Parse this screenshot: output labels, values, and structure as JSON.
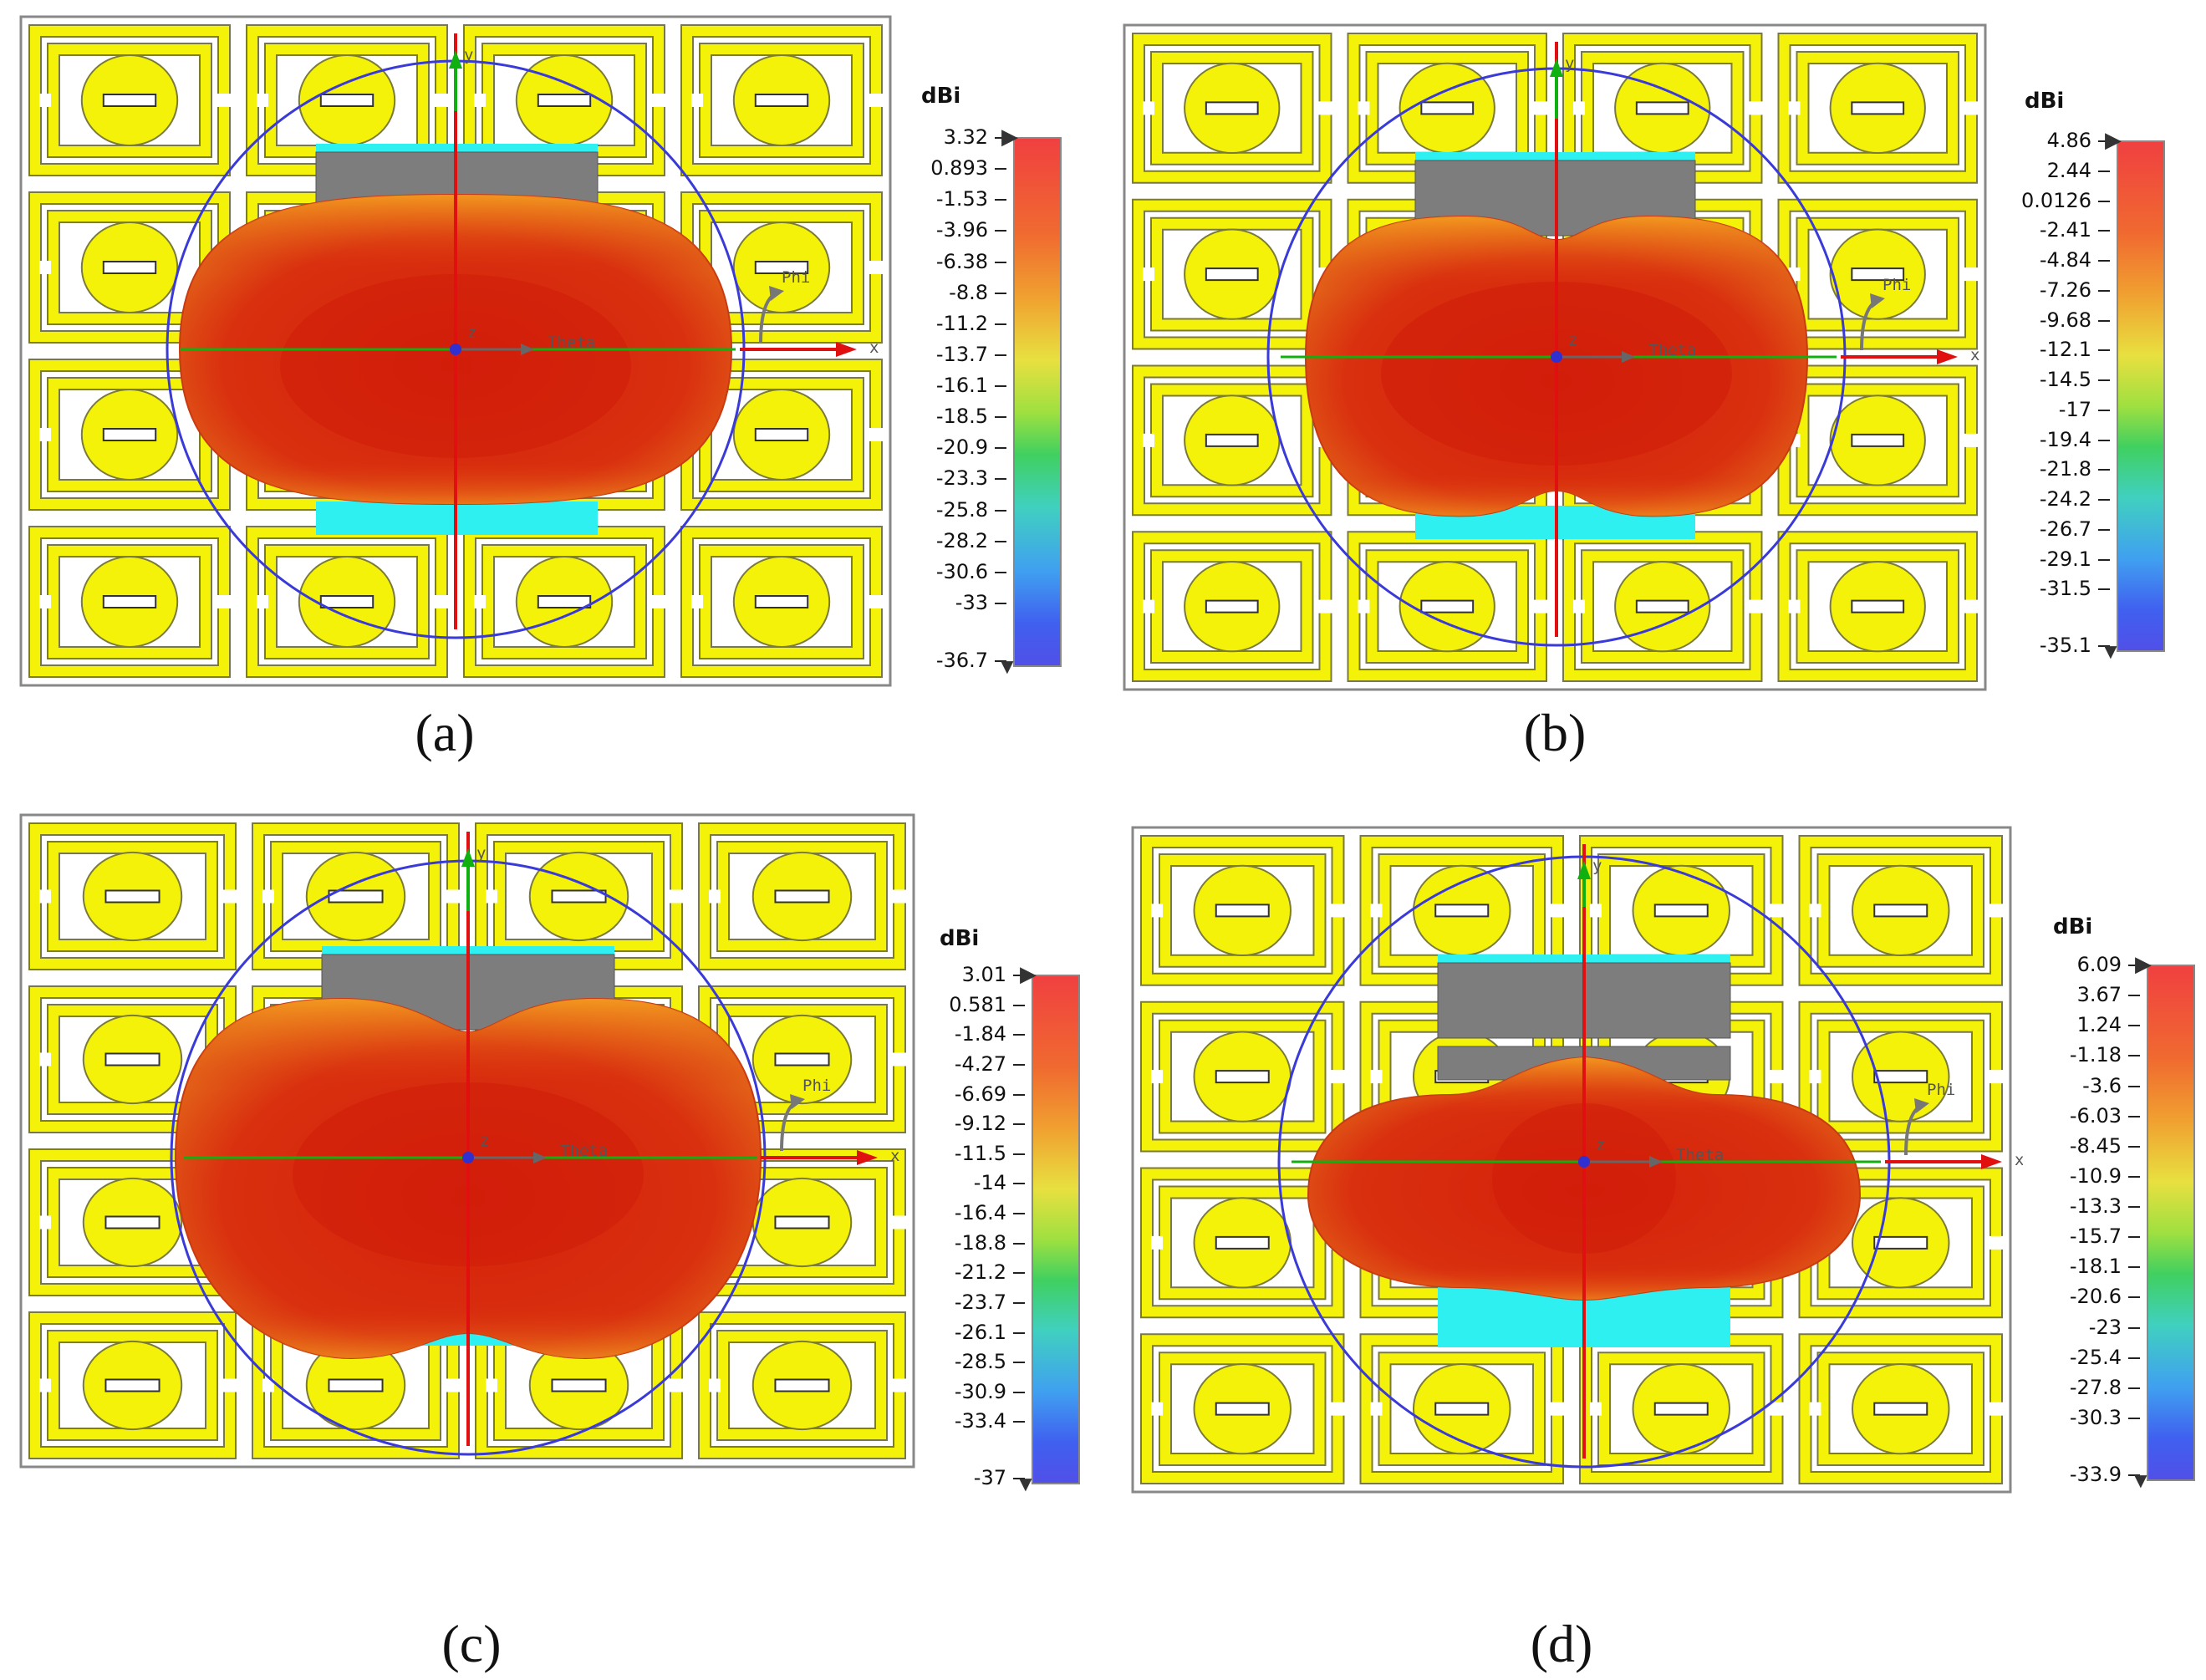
{
  "panels": [
    {
      "id": "a",
      "caption": "(a)",
      "unit": "dBi",
      "colorbar": [
        "3.32",
        "0.893",
        "-1.53",
        "-3.96",
        "-6.38",
        "-8.8",
        "-11.2",
        "-13.7",
        "-16.1",
        "-18.5",
        "-20.9",
        "-23.3",
        "-25.8",
        "-28.2",
        "-30.6",
        "-33",
        "-36.7"
      ],
      "axes": {
        "x": "x",
        "y": "y",
        "z": "z",
        "theta": "Theta",
        "phi": "Phi"
      }
    },
    {
      "id": "b",
      "caption": "(b)",
      "unit": "dBi",
      "colorbar": [
        "4.86",
        "2.44",
        "0.0126",
        "-2.41",
        "-4.84",
        "-7.26",
        "-9.68",
        "-12.1",
        "-14.5",
        "-17",
        "-19.4",
        "-21.8",
        "-24.2",
        "-26.7",
        "-29.1",
        "-31.5",
        "-35.1"
      ],
      "axes": {
        "x": "x",
        "y": "y",
        "z": "z",
        "theta": "Theta",
        "phi": "Phi"
      }
    },
    {
      "id": "c",
      "caption": "(c)",
      "unit": "dBi",
      "colorbar": [
        "3.01",
        "0.581",
        "-1.84",
        "-4.27",
        "-6.69",
        "-9.12",
        "-11.5",
        "-14",
        "-16.4",
        "-18.8",
        "-21.2",
        "-23.7",
        "-26.1",
        "-28.5",
        "-30.9",
        "-33.4",
        "-37"
      ],
      "axes": {
        "x": "x",
        "y": "y",
        "z": "z",
        "theta": "Theta",
        "phi": "Phi"
      }
    },
    {
      "id": "d",
      "caption": "(d)",
      "unit": "dBi",
      "colorbar": [
        "6.09",
        "3.67",
        "1.24",
        "-1.18",
        "-3.6",
        "-6.03",
        "-8.45",
        "-10.9",
        "-13.3",
        "-15.7",
        "-18.1",
        "-20.6",
        "-23",
        "-25.4",
        "-27.8",
        "-30.3",
        "-33.9"
      ],
      "axes": {
        "x": "x",
        "y": "y",
        "z": "z",
        "theta": "Theta",
        "phi": "Phi"
      }
    }
  ],
  "colors": {
    "srr_yellow": "#f5f20a",
    "srr_outline": "#7a7a3a",
    "substrate_gray": "#7d7d7d",
    "ground_cyan": "#2ff0f0",
    "pattern_red": "#d9300f",
    "pattern_edge": "#f5a020",
    "bounding_circle": "#3a3ad8",
    "x_axis": "#e01010",
    "y_axis": "#10b010"
  },
  "icons": [
    "axis-origin-icon",
    "colorbar-max-marker-icon",
    "colorbar-min-marker-icon"
  ]
}
